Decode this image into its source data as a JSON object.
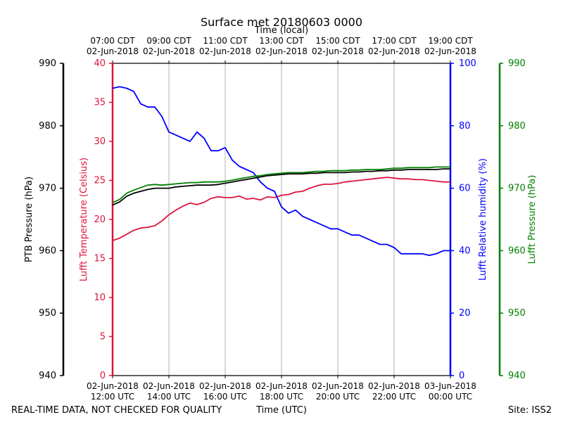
{
  "chart_data": {
    "type": "line",
    "title": "Surface met 20180603 0000",
    "top_axis_title": "Time (local)",
    "xlabel": "Time (UTC)",
    "footer_left": "REAL-TIME DATA, NOT CHECKED FOR QUALITY",
    "footer_right": "Site: ISS2",
    "x_range_hours_utc": [
      12,
      24
    ],
    "grid": "vertical",
    "x_ticks": [
      {
        "hour": 12,
        "top1": "07:00 CDT",
        "top2": "02-Jun-2018",
        "bottom1": "02-Jun-2018",
        "bottom2": "12:00 UTC"
      },
      {
        "hour": 14,
        "top1": "09:00 CDT",
        "top2": "02-Jun-2018",
        "bottom1": "02-Jun-2018",
        "bottom2": "14:00 UTC"
      },
      {
        "hour": 16,
        "top1": "11:00 CDT",
        "top2": "02-Jun-2018",
        "bottom1": "02-Jun-2018",
        "bottom2": "16:00 UTC"
      },
      {
        "hour": 18,
        "top1": "13:00 CDT",
        "top2": "02-Jun-2018",
        "bottom1": "02-Jun-2018",
        "bottom2": "18:00 UTC"
      },
      {
        "hour": 20,
        "top1": "15:00 CDT",
        "top2": "02-Jun-2018",
        "bottom1": "02-Jun-2018",
        "bottom2": "20:00 UTC"
      },
      {
        "hour": 22,
        "top1": "17:00 CDT",
        "top2": "02-Jun-2018",
        "bottom1": "02-Jun-2018",
        "bottom2": "22:00 UTC"
      },
      {
        "hour": 24,
        "top1": "19:00 CDT",
        "top2": "02-Jun-2018",
        "bottom1": "03-Jun-2018",
        "bottom2": "00:00 UTC"
      }
    ],
    "axes": [
      {
        "key": "ptb",
        "label": "PTB Pressure (hPa)",
        "side": "left-outer",
        "color": "#000000",
        "ylim": [
          940,
          990
        ],
        "ticks": [
          940,
          950,
          960,
          970,
          980,
          990
        ]
      },
      {
        "key": "temp",
        "label": "Lufft Temperature (Celsius)",
        "side": "left-inner",
        "color": "#dc143c",
        "ylim": [
          0,
          40
        ],
        "ticks": [
          0,
          5,
          10,
          15,
          20,
          25,
          30,
          35,
          40
        ]
      },
      {
        "key": "rh",
        "label": "Lufft Relative humidity (%)",
        "side": "right-inner",
        "color": "#0000ff",
        "ylim": [
          0,
          100
        ],
        "ticks": [
          0,
          20,
          40,
          60,
          80,
          100
        ]
      },
      {
        "key": "lp",
        "label": "Lufft Pressure (hPa)",
        "side": "right-outer",
        "color": "#008000",
        "ylim": [
          940,
          990
        ],
        "ticks": [
          940,
          950,
          960,
          970,
          980,
          990
        ]
      }
    ],
    "series": [
      {
        "axis": "temp",
        "color": "#dc143c",
        "x": [
          12.0,
          12.25,
          12.5,
          12.75,
          13.0,
          13.25,
          13.5,
          13.75,
          14.0,
          14.25,
          14.5,
          14.75,
          15.0,
          15.25,
          15.5,
          15.75,
          16.0,
          16.25,
          16.5,
          16.75,
          17.0,
          17.25,
          17.5,
          17.75,
          18.0,
          18.25,
          18.5,
          18.75,
          19.0,
          19.25,
          19.5,
          19.75,
          20.0,
          20.25,
          20.5,
          20.75,
          21.0,
          21.25,
          21.5,
          21.75,
          22.0,
          22.25,
          22.5,
          22.75,
          23.0,
          23.25,
          23.5,
          23.75,
          24.0
        ],
        "values": [
          17.3,
          17.6,
          18.1,
          18.6,
          18.9,
          19.0,
          19.2,
          19.8,
          20.6,
          21.2,
          21.7,
          22.1,
          21.9,
          22.2,
          22.7,
          22.9,
          22.8,
          22.8,
          23.0,
          22.6,
          22.7,
          22.5,
          22.9,
          22.8,
          23.1,
          23.2,
          23.5,
          23.6,
          24.0,
          24.3,
          24.5,
          24.5,
          24.6,
          24.8,
          24.9,
          25.0,
          25.1,
          25.2,
          25.3,
          25.4,
          25.3,
          25.2,
          25.2,
          25.1,
          25.1,
          25.0,
          24.9,
          24.8,
          24.8
        ]
      },
      {
        "axis": "rh",
        "color": "#0000ff",
        "x": [
          12.0,
          12.25,
          12.5,
          12.75,
          13.0,
          13.25,
          13.5,
          13.75,
          14.0,
          14.25,
          14.5,
          14.75,
          15.0,
          15.25,
          15.5,
          15.75,
          16.0,
          16.25,
          16.5,
          16.75,
          17.0,
          17.25,
          17.5,
          17.75,
          18.0,
          18.25,
          18.5,
          18.75,
          19.0,
          19.25,
          19.5,
          19.75,
          20.0,
          20.25,
          20.5,
          20.75,
          21.0,
          21.25,
          21.5,
          21.75,
          22.0,
          22.25,
          22.5,
          22.75,
          23.0,
          23.25,
          23.5,
          23.75,
          24.0
        ],
        "values": [
          92,
          92.5,
          92,
          91,
          87,
          86,
          86,
          83,
          78,
          77,
          76,
          75,
          78,
          76,
          72,
          72,
          73,
          69,
          67,
          66,
          65,
          62,
          60,
          59,
          54,
          52,
          53,
          51,
          50,
          49,
          48,
          47,
          47,
          46,
          45,
          45,
          44,
          43,
          42,
          42,
          41,
          39,
          39,
          39,
          39,
          38.5,
          39,
          40,
          40
        ]
      },
      {
        "axis": "ptb",
        "color": "#000000",
        "x": [
          12.0,
          12.25,
          12.5,
          12.75,
          13.0,
          13.25,
          13.5,
          13.75,
          14.0,
          14.25,
          14.5,
          14.75,
          15.0,
          15.25,
          15.5,
          15.75,
          16.0,
          16.25,
          16.5,
          16.75,
          17.0,
          17.25,
          17.5,
          17.75,
          18.0,
          18.25,
          18.5,
          18.75,
          19.0,
          19.25,
          19.5,
          19.75,
          20.0,
          20.25,
          20.5,
          20.75,
          21.0,
          21.25,
          21.5,
          21.75,
          22.0,
          22.25,
          22.5,
          22.75,
          23.0,
          23.25,
          23.5,
          23.75,
          24.0
        ],
        "values": [
          967.3,
          967.8,
          968.7,
          969.2,
          969.5,
          969.8,
          970.0,
          970.0,
          970.0,
          970.2,
          970.3,
          970.4,
          970.5,
          970.5,
          970.5,
          970.6,
          970.8,
          971.0,
          971.2,
          971.4,
          971.6,
          971.8,
          972.0,
          972.1,
          972.2,
          972.3,
          972.3,
          972.3,
          972.4,
          972.4,
          972.5,
          972.5,
          972.5,
          972.5,
          972.6,
          972.6,
          972.7,
          972.7,
          972.8,
          972.8,
          972.9,
          972.9,
          973.0,
          973.0,
          973.0,
          973.0,
          973.0,
          973.1,
          973.1
        ]
      },
      {
        "axis": "lp",
        "color": "#008000",
        "x": [
          12.0,
          12.25,
          12.5,
          12.75,
          13.0,
          13.25,
          13.5,
          13.75,
          14.0,
          14.25,
          14.5,
          14.75,
          15.0,
          15.25,
          15.5,
          15.75,
          16.0,
          16.25,
          16.5,
          16.75,
          17.0,
          17.25,
          17.5,
          17.75,
          18.0,
          18.25,
          18.5,
          18.75,
          19.0,
          19.25,
          19.5,
          19.75,
          20.0,
          20.25,
          20.5,
          20.75,
          21.0,
          21.25,
          21.5,
          21.75,
          22.0,
          22.25,
          22.5,
          22.75,
          23.0,
          23.25,
          23.5,
          23.75,
          24.0
        ],
        "values": [
          967.7,
          968.2,
          969.2,
          969.7,
          970.1,
          970.5,
          970.6,
          970.5,
          970.6,
          970.7,
          970.8,
          970.9,
          970.9,
          971.0,
          971.0,
          971.0,
          971.1,
          971.3,
          971.5,
          971.7,
          971.9,
          972.0,
          972.2,
          972.3,
          972.4,
          972.5,
          972.5,
          972.5,
          972.6,
          972.7,
          972.7,
          972.8,
          972.8,
          972.8,
          972.9,
          972.9,
          973.0,
          973.0,
          973.0,
          973.1,
          973.2,
          973.2,
          973.3,
          973.3,
          973.3,
          973.3,
          973.4,
          973.4,
          973.4
        ]
      }
    ]
  }
}
